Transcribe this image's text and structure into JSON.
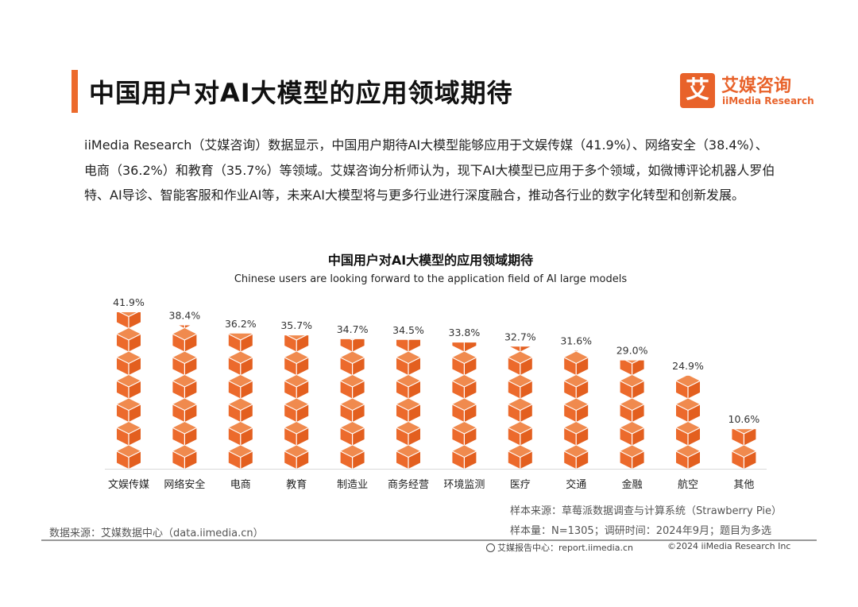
{
  "header": {
    "title": "中国用户对AI大模型的应用领域期待",
    "logo_mark": "艾",
    "logo_cn": "艾媒咨询",
    "logo_en": "iiMedia Research",
    "accent_color": "#ec6a2c"
  },
  "intro_text": "iiMedia Research（艾媒咨询）数据显示，中国用户期待AI大模型能够应用于文娱传媒（41.9%）、网络安全（38.4%）、电商（36.2%）和教育（35.7%）等领域。艾媒咨询分析师认为，现下AI大模型已应用于多个领域，如微博评论机器人罗伯特、AI导诊、智能客服和作业AI等，未来AI大模型将与更多行业进行深度融合，推动各行业的数字化转型和创新发展。",
  "chart_data": {
    "type": "bar",
    "title": "中国用户对AI大模型的应用领域期待",
    "subtitle": "Chinese users are looking forward to the application field of AI large models",
    "categories": [
      "文娱传媒",
      "网络安全",
      "电商",
      "教育",
      "制造业",
      "商务经营",
      "环境监测",
      "医疗",
      "交通",
      "金融",
      "航空",
      "其他"
    ],
    "values": [
      41.9,
      38.4,
      36.2,
      35.7,
      34.7,
      34.5,
      33.8,
      32.7,
      31.6,
      29.0,
      24.9,
      10.6
    ],
    "value_labels": [
      "41.9%",
      "38.4%",
      "36.2%",
      "35.7%",
      "34.7%",
      "34.5%",
      "33.8%",
      "32.7%",
      "31.6%",
      "29.0%",
      "24.9%",
      "10.6%"
    ],
    "unit": "%",
    "ylim": [
      0,
      41.9
    ],
    "grid": false,
    "bar_style": "stacked cube pictogram",
    "bar_color": "#ec6a2c"
  },
  "footer": {
    "source": "数据来源：艾媒数据中心（data.iimedia.cn）",
    "sample_source": "样本来源：草莓派数据调查与计算系统（Strawberry Pie）",
    "sample_size": "样本量：N=1305；调研时间：2024年9月；题目为多选",
    "site": "艾媒报告中心：report.iimedia.cn",
    "copyright": "©2024  iiMedia Research  Inc"
  }
}
